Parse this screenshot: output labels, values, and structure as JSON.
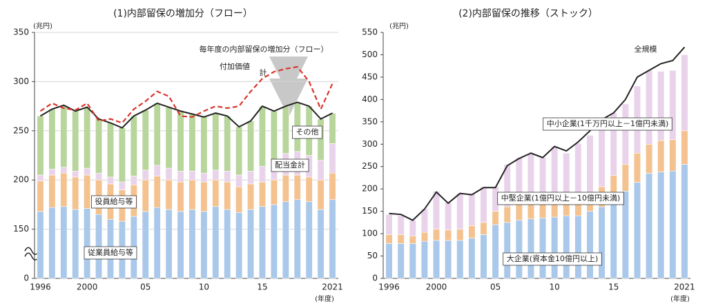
{
  "chart_data": [
    {
      "type": "bar",
      "stacked": true,
      "title": "(1)内部留保の増加分（フロー）",
      "y_label": "(兆円)",
      "x_label": "(年度)",
      "annotation": "毎年度の内部留保の増加分（フロー）",
      "categories": [
        "1996",
        null,
        null,
        null,
        "2000",
        null,
        null,
        null,
        null,
        "05",
        null,
        null,
        null,
        null,
        "10",
        null,
        null,
        null,
        null,
        "15",
        null,
        null,
        null,
        null,
        null,
        "2021"
      ],
      "ylim": [
        0,
        350
      ],
      "yticks": [
        0,
        150,
        200,
        250,
        300,
        350
      ],
      "axis_break": true,
      "grid": true,
      "series": [
        {
          "name": "従業員給与等",
          "color": "#a9c8ea",
          "values": [
            168,
            172,
            173,
            170,
            171,
            165,
            160,
            158,
            163,
            168,
            172,
            170,
            168,
            170,
            168,
            173,
            170,
            167,
            170,
            173,
            175,
            178,
            180,
            178,
            170,
            180
          ]
        },
        {
          "name": "役員給与等",
          "color": "#f4c28f",
          "values": [
            31,
            33,
            34,
            33,
            34,
            35,
            36,
            32,
            32,
            32,
            32,
            30,
            30,
            30,
            30,
            27,
            28,
            26,
            26,
            25,
            25,
            27,
            25,
            25,
            30,
            27
          ]
        },
        {
          "name": "配当金計",
          "color": "#e9d3ea",
          "values": [
            6,
            6,
            6,
            6,
            7,
            7,
            7,
            8,
            9,
            10,
            11,
            12,
            11,
            9,
            9,
            10,
            11,
            12,
            13,
            16,
            20,
            22,
            24,
            22,
            20,
            30
          ]
        },
        {
          "name": "その他",
          "color": "#b8d59c",
          "values": [
            60,
            61,
            63,
            61,
            62,
            55,
            55,
            55,
            61,
            61,
            63,
            62,
            61,
            58,
            57,
            58,
            56,
            49,
            51,
            61,
            50,
            48,
            50,
            50,
            42,
            31
          ]
        },
        {
          "name": "付加価値",
          "type": "line",
          "color": "#222222",
          "values": [
            265,
            272,
            276,
            270,
            274,
            262,
            258,
            253,
            265,
            271,
            278,
            274,
            270,
            267,
            264,
            268,
            265,
            254,
            260,
            275,
            270,
            275,
            279,
            275,
            262,
            268
          ]
        },
        {
          "name": "計",
          "type": "line",
          "dashed": true,
          "color": "#d9342b",
          "values": [
            270,
            278,
            273,
            271,
            278,
            260,
            262,
            258,
            272,
            280,
            290,
            285,
            265,
            264,
            270,
            275,
            273,
            275,
            290,
            303,
            310,
            313,
            315,
            300,
            272,
            298
          ]
        }
      ]
    },
    {
      "type": "bar",
      "stacked": true,
      "title": "(2)内部留保の推移（ストック）",
      "y_label": "(兆円)",
      "x_label": "(年度)",
      "categories": [
        "1996",
        null,
        null,
        null,
        "2000",
        null,
        null,
        null,
        null,
        "05",
        null,
        null,
        null,
        null,
        "10",
        null,
        null,
        null,
        null,
        "15",
        null,
        null,
        null,
        null,
        null,
        "2021"
      ],
      "ylim": [
        0,
        550
      ],
      "yticks": [
        0,
        50,
        100,
        150,
        200,
        250,
        300,
        350,
        400,
        450,
        500,
        550
      ],
      "axis_break": false,
      "grid": false,
      "series": [
        {
          "name": "大企業(資本金10億円以上)",
          "color": "#a9c8ea",
          "values": [
            78,
            78,
            78,
            83,
            85,
            85,
            85,
            90,
            98,
            120,
            125,
            130,
            133,
            135,
            137,
            140,
            140,
            150,
            160,
            170,
            195,
            215,
            235,
            238,
            240,
            255
          ]
        },
        {
          "name": "中堅企業(1億円以上－10億円未満)",
          "color": "#f4c28f",
          "values": [
            20,
            20,
            17,
            20,
            25,
            23,
            25,
            28,
            27,
            30,
            35,
            35,
            35,
            35,
            40,
            40,
            40,
            40,
            45,
            60,
            60,
            65,
            65,
            70,
            70,
            75
          ]
        },
        {
          "name": "中小企業(1千万円以上－1億円未満)",
          "color": "#e9d3ea",
          "values": [
            45,
            43,
            35,
            52,
            85,
            62,
            80,
            72,
            80,
            55,
            95,
            105,
            110,
            100,
            118,
            100,
            122,
            130,
            145,
            140,
            135,
            150,
            165,
            155,
            155,
            170
          ]
        },
        {
          "name": "全規模",
          "type": "line",
          "color": "#222222",
          "values": [
            145,
            143,
            130,
            155,
            193,
            168,
            190,
            187,
            203,
            203,
            252,
            268,
            280,
            270,
            295,
            285,
            305,
            330,
            355,
            370,
            400,
            450,
            465,
            480,
            487,
            517
          ]
        }
      ]
    }
  ]
}
